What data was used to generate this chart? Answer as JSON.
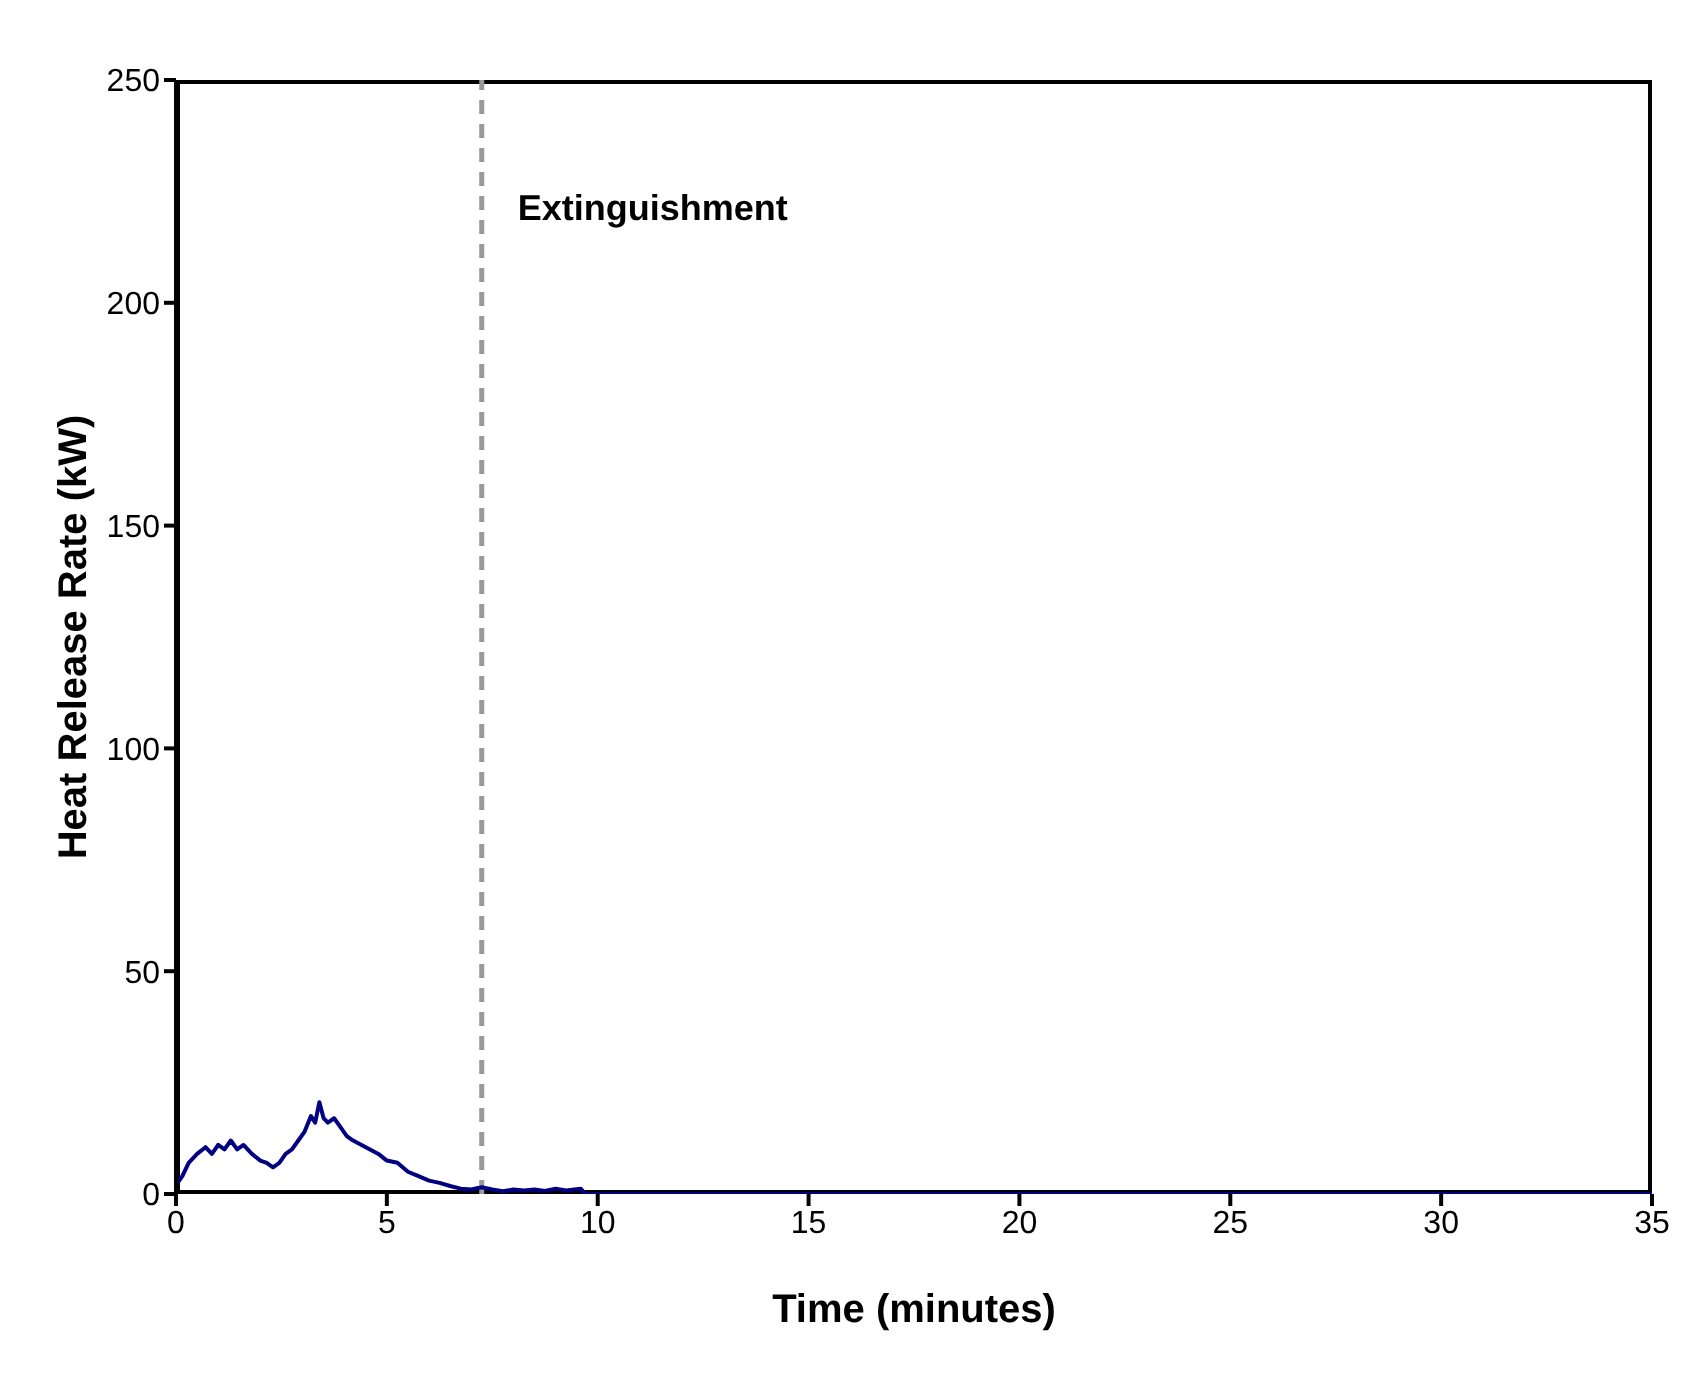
{
  "chart_data": {
    "type": "line",
    "xlabel": "Time (minutes)",
    "ylabel": "Heat Release Rate (kW)",
    "x": [
      0,
      0.15,
      0.3,
      0.5,
      0.7,
      0.85,
      1.0,
      1.15,
      1.3,
      1.45,
      1.6,
      1.8,
      2.0,
      2.15,
      2.3,
      2.45,
      2.6,
      2.75,
      2.9,
      3.05,
      3.2,
      3.3,
      3.4,
      3.5,
      3.6,
      3.75,
      3.9,
      4.05,
      4.2,
      4.4,
      4.6,
      4.8,
      5.0,
      5.25,
      5.5,
      5.75,
      6.0,
      6.25,
      6.5,
      6.75,
      7.0,
      7.25,
      7.5,
      7.75,
      8.0,
      8.25,
      8.5,
      8.75,
      9.0,
      9.25,
      9.6,
      9.7,
      15,
      20,
      25,
      30,
      35
    ],
    "series": [
      {
        "color": "#000080",
        "values": [
          2,
          4,
          7,
          9,
          10.5,
          9,
          11,
          10,
          12,
          10,
          11,
          9,
          7.5,
          7,
          6,
          7,
          9,
          10,
          12,
          14,
          17.5,
          16,
          20.6,
          17,
          16,
          17,
          15,
          13,
          12,
          11,
          10,
          9,
          7.5,
          7,
          5,
          4,
          3,
          2.5,
          1.8,
          1.2,
          1,
          1.5,
          1,
          0.6,
          1,
          0.8,
          1,
          0.7,
          1.2,
          0.8,
          1.2,
          0,
          0,
          0,
          0,
          0,
          0
        ]
      }
    ],
    "xlim": [
      0,
      35
    ],
    "xticks": [
      0,
      5,
      10,
      15,
      20,
      25,
      30,
      35
    ],
    "ylim": [
      0,
      250
    ],
    "yticks": [
      0,
      50,
      100,
      150,
      200,
      250
    ],
    "grid": false,
    "legend": false,
    "marker": "none",
    "line_style": "solid",
    "ref_lines": [
      {
        "axis": "x",
        "value": 7.25,
        "label": "Extinguishment",
        "color": "#999999",
        "line_style": "dashed"
      }
    ]
  }
}
